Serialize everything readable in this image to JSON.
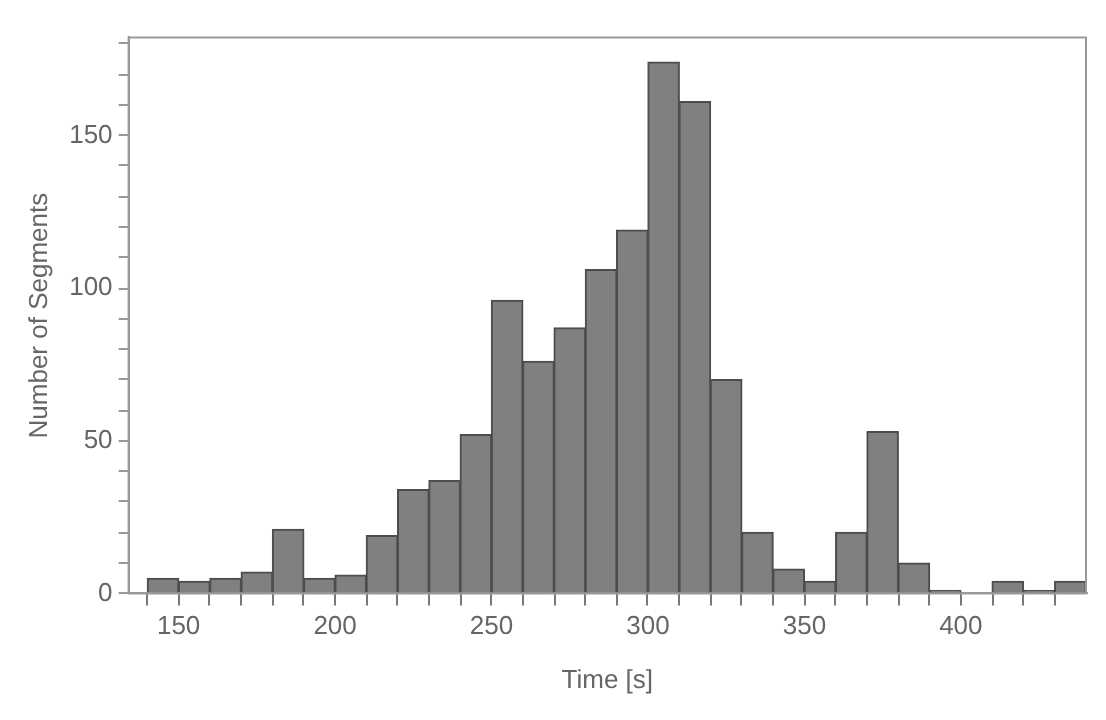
{
  "chart_data": {
    "type": "histogram",
    "xlabel": "Time [s]",
    "ylabel": "Number of Segments",
    "color": "#808080",
    "bins": [
      140,
      150,
      160,
      170,
      180,
      190,
      200,
      210,
      220,
      230,
      240,
      250,
      260,
      270,
      280,
      290,
      300,
      310,
      320,
      330,
      340,
      350,
      360,
      370,
      380,
      390,
      400,
      410,
      420,
      430,
      440
    ],
    "values": [
      5,
      4,
      5,
      7,
      21,
      5,
      6,
      19,
      34,
      37,
      52,
      96,
      76,
      87,
      106,
      119,
      174,
      161,
      70,
      20,
      8,
      4,
      20,
      53,
      10,
      1,
      0,
      4,
      1,
      4
    ],
    "xlim": [
      134,
      440
    ],
    "ylim": [
      0,
      182
    ],
    "xticks": [
      {
        "value": 140,
        "label": null
      },
      150,
      {
        "value": 160,
        "label": null
      },
      {
        "value": 170,
        "label": null
      },
      {
        "value": 180,
        "label": null
      },
      {
        "value": 190,
        "label": null
      },
      200,
      {
        "value": 210,
        "label": null
      },
      {
        "value": 220,
        "label": null
      },
      {
        "value": 230,
        "label": null
      },
      {
        "value": 240,
        "label": null
      },
      250,
      {
        "value": 260,
        "label": null
      },
      {
        "value": 270,
        "label": null
      },
      {
        "value": 280,
        "label": null
      },
      {
        "value": 290,
        "label": null
      },
      300,
      {
        "value": 310,
        "label": null
      },
      {
        "value": 320,
        "label": null
      },
      {
        "value": 330,
        "label": null
      },
      {
        "value": 340,
        "label": null
      },
      350,
      {
        "value": 360,
        "label": null
      },
      {
        "value": 370,
        "label": null
      },
      {
        "value": 380,
        "label": null
      },
      {
        "value": 390,
        "label": null
      },
      400,
      {
        "value": 410,
        "label": null
      },
      {
        "value": 420,
        "label": null
      },
      {
        "value": 430,
        "label": null
      }
    ],
    "yticks": [
      0,
      {
        "value": 10,
        "label": null
      },
      {
        "value": 20,
        "label": null
      },
      {
        "value": 30,
        "label": null
      },
      {
        "value": 40,
        "label": null
      },
      50,
      {
        "value": 60,
        "label": null
      },
      {
        "value": 70,
        "label": null
      },
      {
        "value": 80,
        "label": null
      },
      {
        "value": 90,
        "label": null
      },
      100,
      {
        "value": 110,
        "label": null
      },
      {
        "value": 120,
        "label": null
      },
      {
        "value": 130,
        "label": null
      },
      {
        "value": 140,
        "label": null
      },
      150,
      {
        "value": 160,
        "label": null
      },
      {
        "value": 170,
        "label": null
      },
      {
        "value": 180,
        "label": null
      }
    ],
    "grid": false,
    "legend": false
  }
}
